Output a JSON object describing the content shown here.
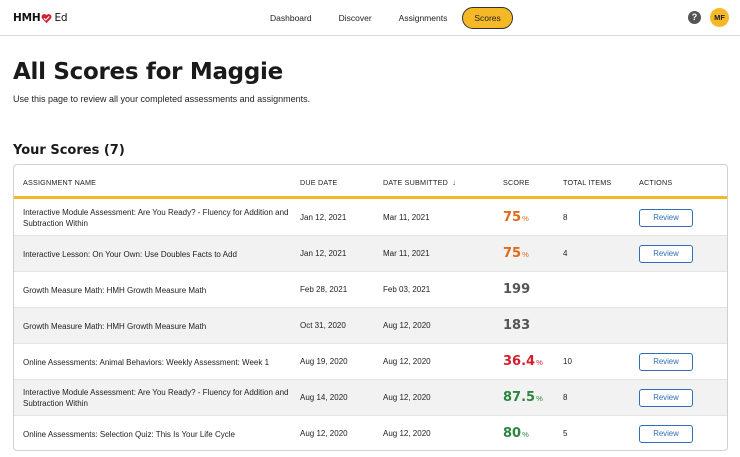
{
  "app": {
    "logo_text": "HMH",
    "logo_suffix": "Ed",
    "brand_color": "#d21f2d"
  },
  "nav": {
    "tabs": [
      {
        "label": "Dashboard",
        "active": false
      },
      {
        "label": "Discover",
        "active": false
      },
      {
        "label": "Assignments",
        "active": false
      },
      {
        "label": "Scores",
        "active": true
      }
    ]
  },
  "header_actions": {
    "help_icon": "question-circle-icon",
    "help_glyph": "?",
    "avatar_initials": "MF"
  },
  "page": {
    "title": "All Scores for Maggie",
    "subtitle": "Use this page to review all your completed assessments and assignments."
  },
  "scores_section": {
    "title": "Your Scores (7)",
    "columns": {
      "name": "ASSIGNMENT NAME",
      "due": "DUE DATE",
      "submitted": "DATE SUBMITTED",
      "score": "SCORE",
      "items": "TOTAL ITEMS",
      "actions": "ACTIONS"
    },
    "sort_icon": "arrow-down-icon",
    "sort_glyph": "↓",
    "review_label": "Review",
    "rows": [
      {
        "name": "Interactive Module Assessment: Are You Ready? - Fluency for Addition and Subtraction Within",
        "due": "Jan 12, 2021",
        "submitted": "Mar 11, 2021",
        "score": "75",
        "unit": "%",
        "score_color": "orange",
        "items": "8",
        "has_review": true
      },
      {
        "name": "Interactive Lesson: On Your Own: Use Doubles Facts to Add",
        "due": "Jan 12, 2021",
        "submitted": "Mar 11, 2021",
        "score": "75",
        "unit": "%",
        "score_color": "orange",
        "items": "4",
        "has_review": true
      },
      {
        "name": "Growth Measure Math: HMH Growth Measure Math",
        "due": "Feb 28, 2021",
        "submitted": "Feb 03, 2021",
        "score": "199",
        "unit": "",
        "score_color": "gray",
        "items": "",
        "has_review": false
      },
      {
        "name": "Growth Measure Math: HMH Growth Measure Math",
        "due": "Oct 31, 2020",
        "submitted": "Aug 12, 2020",
        "score": "183",
        "unit": "",
        "score_color": "gray",
        "items": "",
        "has_review": false
      },
      {
        "name": "Online Assessments: Animal Behaviors: Weekly Assessment: Week 1",
        "due": "Aug 19, 2020",
        "submitted": "Aug 12, 2020",
        "score": "36.4",
        "unit": "%",
        "score_color": "red",
        "items": "10",
        "has_review": true
      },
      {
        "name": "Interactive Module Assessment: Are You Ready? - Fluency for Addition and Subtraction Within",
        "due": "Aug 14, 2020",
        "submitted": "Aug 12, 2020",
        "score": "87.5",
        "unit": "%",
        "score_color": "green",
        "items": "8",
        "has_review": true
      },
      {
        "name": "Online Assessments: Selection Quiz: This Is Your Life Cycle",
        "due": "Aug 12, 2020",
        "submitted": "Aug 12, 2020",
        "score": "80",
        "unit": "%",
        "score_color": "green",
        "items": "5",
        "has_review": true
      }
    ]
  },
  "colors": {
    "accent": "#f5b928",
    "link": "#2f6fb5",
    "score_orange": "#e06a1a",
    "score_red": "#d21f2d",
    "score_green": "#2e8540",
    "score_gray": "#555555"
  }
}
